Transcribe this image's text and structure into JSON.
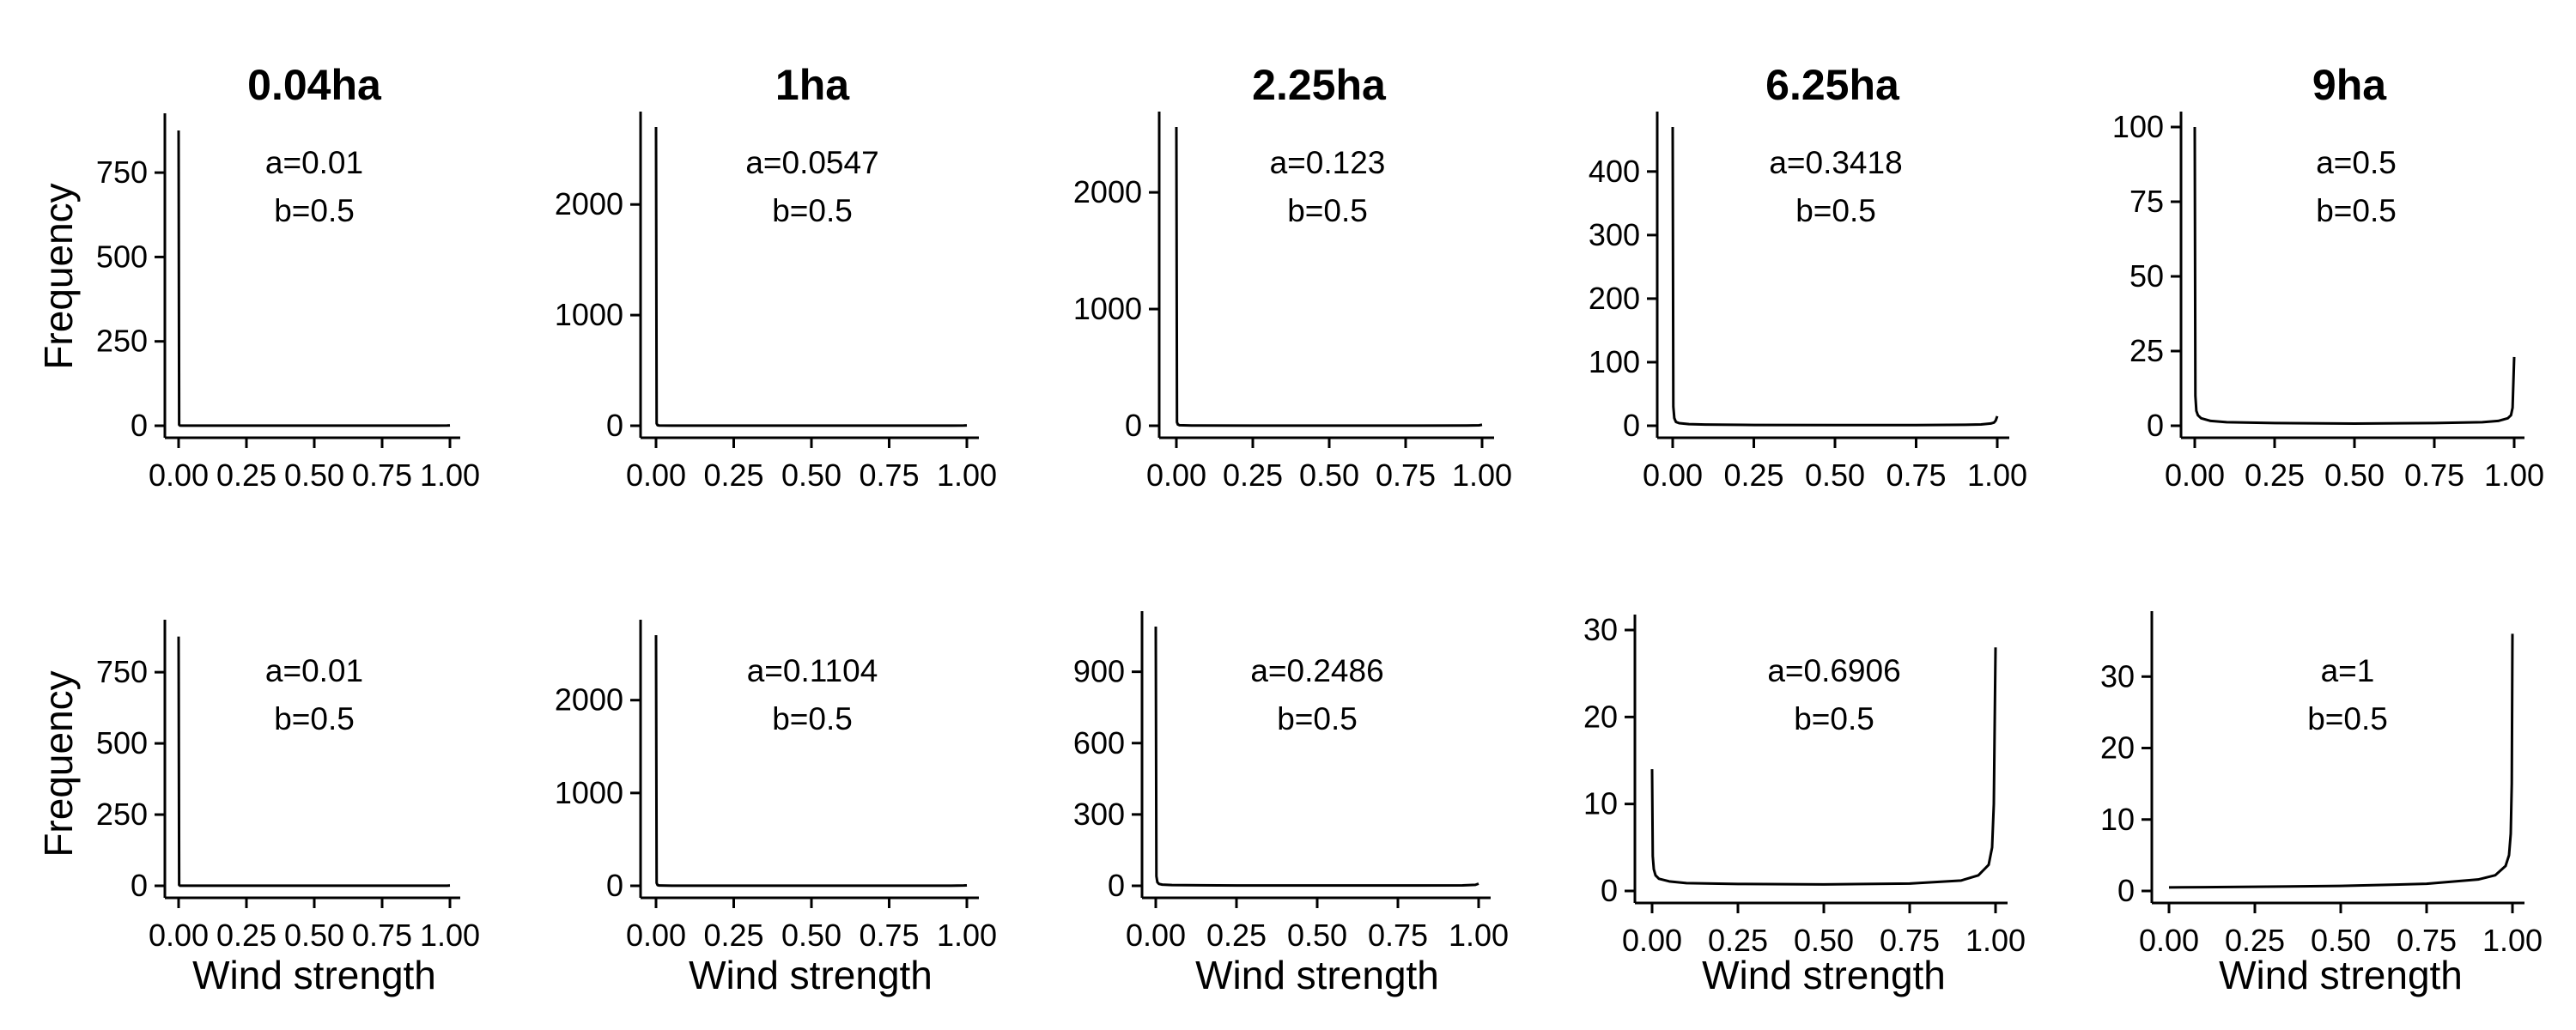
{
  "columns": [
    {
      "title": "0.04ha"
    },
    {
      "title": "1ha"
    },
    {
      "title": "2.25ha"
    },
    {
      "title": "6.25ha"
    },
    {
      "title": "9ha"
    }
  ],
  "axes": {
    "ylabel": "Frequency",
    "xlabel": "Wind strength"
  },
  "chart_data": [
    {
      "type": "line",
      "title": "0.04ha",
      "params": [
        "a=0.01",
        "b=0.5"
      ],
      "xlim": [
        0,
        1
      ],
      "ylim": [
        0,
        880
      ],
      "xticks": [
        0,
        0.25,
        0.5,
        0.75,
        1
      ],
      "xtick_labels": [
        "0.00",
        "0.25",
        "0.50",
        "0.75",
        "1.00"
      ],
      "yticks": [
        0,
        250,
        500,
        750
      ],
      "ytick_labels": [
        "0",
        "250",
        "500",
        "750"
      ],
      "x": [
        0.0,
        0.002,
        0.005,
        0.01,
        0.05,
        0.25,
        0.5,
        0.75,
        0.95,
        0.99,
        1.0
      ],
      "y": [
        875,
        3,
        0.5,
        0.3,
        0.2,
        0.2,
        0.2,
        0.2,
        0.3,
        0.5,
        1
      ]
    },
    {
      "type": "line",
      "title": "1ha",
      "params": [
        "a=0.0547",
        "b=0.5"
      ],
      "xlim": [
        0,
        1
      ],
      "ylim": [
        0,
        2700
      ],
      "xticks": [
        0,
        0.25,
        0.5,
        0.75,
        1
      ],
      "xtick_labels": [
        "0.00",
        "0.25",
        "0.50",
        "0.75",
        "1.00"
      ],
      "yticks": [
        0,
        1000,
        2000
      ],
      "ytick_labels": [
        "0",
        "1000",
        "2000"
      ],
      "x": [
        0.0,
        0.002,
        0.005,
        0.01,
        0.05,
        0.25,
        0.5,
        0.75,
        0.95,
        0.99,
        1.0
      ],
      "y": [
        2700,
        20,
        5,
        2,
        1,
        1,
        1,
        1,
        1,
        2,
        3
      ]
    },
    {
      "type": "line",
      "title": "2.25ha",
      "params": [
        "a=0.123",
        "b=0.5"
      ],
      "xlim": [
        0,
        1
      ],
      "ylim": [
        0,
        2560
      ],
      "xticks": [
        0,
        0.25,
        0.5,
        0.75,
        1
      ],
      "xtick_labels": [
        "0.00",
        "0.25",
        "0.50",
        "0.75",
        "1.00"
      ],
      "yticks": [
        0,
        1000,
        2000
      ],
      "ytick_labels": [
        "0",
        "1000",
        "2000"
      ],
      "x": [
        0.0,
        0.002,
        0.005,
        0.01,
        0.05,
        0.25,
        0.5,
        0.75,
        0.95,
        0.99,
        1.0
      ],
      "y": [
        2560,
        30,
        10,
        5,
        2,
        1,
        1,
        1,
        2,
        4,
        8
      ]
    },
    {
      "type": "line",
      "title": "6.25ha",
      "params": [
        "a=0.3418",
        "b=0.5"
      ],
      "xlim": [
        0,
        1
      ],
      "ylim": [
        0,
        470
      ],
      "xticks": [
        0,
        0.25,
        0.5,
        0.75,
        1
      ],
      "xtick_labels": [
        "0.00",
        "0.25",
        "0.50",
        "0.75",
        "1.00"
      ],
      "yticks": [
        0,
        100,
        200,
        300,
        400
      ],
      "ytick_labels": [
        "0",
        "100",
        "200",
        "300",
        "400"
      ],
      "x": [
        0.0,
        0.002,
        0.005,
        0.01,
        0.02,
        0.05,
        0.1,
        0.25,
        0.5,
        0.75,
        0.9,
        0.95,
        0.98,
        0.99,
        0.995,
        1.0
      ],
      "y": [
        470,
        30,
        12,
        6,
        4,
        2.5,
        1.8,
        1.2,
        1,
        1.1,
        1.5,
        2,
        3.5,
        5,
        8,
        15
      ]
    },
    {
      "type": "line",
      "title": "9ha",
      "params": [
        "a=0.5",
        "b=0.5"
      ],
      "xlim": [
        0,
        1
      ],
      "ylim": [
        0,
        100
      ],
      "xticks": [
        0,
        0.25,
        0.5,
        0.75,
        1
      ],
      "xtick_labels": [
        "0.00",
        "0.25",
        "0.50",
        "0.75",
        "1.00"
      ],
      "yticks": [
        0,
        25,
        50,
        75,
        100
      ],
      "ytick_labels": [
        "0",
        "25",
        "50",
        "75",
        "100"
      ],
      "x": [
        0.0,
        0.002,
        0.005,
        0.01,
        0.02,
        0.05,
        0.1,
        0.25,
        0.5,
        0.75,
        0.9,
        0.95,
        0.98,
        0.99,
        0.995,
        1.0
      ],
      "y": [
        100,
        10,
        5,
        3.5,
        2.5,
        1.6,
        1.2,
        0.9,
        0.7,
        0.9,
        1.2,
        1.6,
        2.5,
        3.5,
        6,
        23
      ]
    },
    {
      "type": "line",
      "title": "",
      "params": [
        "a=0.01",
        "b=0.5"
      ],
      "xlim": [
        0,
        1
      ],
      "ylim": [
        0,
        880
      ],
      "xticks": [
        0,
        0.25,
        0.5,
        0.75,
        1
      ],
      "xtick_labels": [
        "0.00",
        "0.25",
        "0.50",
        "0.75",
        "1.00"
      ],
      "yticks": [
        0,
        250,
        500,
        750
      ],
      "ytick_labels": [
        "0",
        "250",
        "500",
        "750"
      ],
      "x": [
        0.0,
        0.002,
        0.005,
        0.01,
        0.05,
        0.25,
        0.5,
        0.75,
        0.95,
        0.99,
        1.0
      ],
      "y": [
        875,
        3,
        0.5,
        0.3,
        0.2,
        0.2,
        0.2,
        0.2,
        0.3,
        0.5,
        1
      ]
    },
    {
      "type": "line",
      "title": "",
      "params": [
        "a=0.1104",
        "b=0.5"
      ],
      "xlim": [
        0,
        1
      ],
      "ylim": [
        0,
        2700
      ],
      "xticks": [
        0,
        0.25,
        0.5,
        0.75,
        1
      ],
      "xtick_labels": [
        "0.00",
        "0.25",
        "0.50",
        "0.75",
        "1.00"
      ],
      "yticks": [
        0,
        1000,
        2000
      ],
      "ytick_labels": [
        "0",
        "1000",
        "2000"
      ],
      "x": [
        0.0,
        0.002,
        0.005,
        0.01,
        0.05,
        0.25,
        0.5,
        0.75,
        0.95,
        0.99,
        1.0
      ],
      "y": [
        2700,
        30,
        8,
        3,
        1.5,
        1,
        1,
        1,
        1.5,
        3,
        5
      ]
    },
    {
      "type": "line",
      "title": "",
      "params": [
        "a=0.2486",
        "b=0.5"
      ],
      "xlim": [
        0,
        1
      ],
      "ylim": [
        0,
        1090
      ],
      "xticks": [
        0,
        0.25,
        0.5,
        0.75,
        1
      ],
      "xtick_labels": [
        "0.00",
        "0.25",
        "0.50",
        "0.75",
        "1.00"
      ],
      "yticks": [
        0,
        300,
        600,
        900
      ],
      "ytick_labels": [
        "0",
        "300",
        "600",
        "900"
      ],
      "x": [
        0.0,
        0.002,
        0.005,
        0.01,
        0.02,
        0.05,
        0.25,
        0.5,
        0.75,
        0.95,
        0.99,
        1.0
      ],
      "y": [
        1090,
        40,
        15,
        8,
        5,
        3,
        1.5,
        1.2,
        1.3,
        2,
        4,
        9
      ]
    },
    {
      "type": "line",
      "title": "",
      "params": [
        "a=0.6906",
        "b=0.5"
      ],
      "xlim": [
        0,
        1
      ],
      "ylim": [
        0,
        30
      ],
      "xticks": [
        0,
        0.25,
        0.5,
        0.75,
        1
      ],
      "xtick_labels": [
        "0.00",
        "0.25",
        "0.50",
        "0.75",
        "1.00"
      ],
      "yticks": [
        0,
        10,
        20,
        30
      ],
      "ytick_labels": [
        "0",
        "10",
        "20",
        "30"
      ],
      "x": [
        0.0,
        0.002,
        0.005,
        0.01,
        0.02,
        0.05,
        0.1,
        0.25,
        0.5,
        0.75,
        0.9,
        0.95,
        0.98,
        0.99,
        0.995,
        1.0
      ],
      "y": [
        14,
        4,
        2.5,
        1.8,
        1.4,
        1.1,
        0.9,
        0.8,
        0.75,
        0.85,
        1.2,
        1.8,
        3,
        5,
        10,
        28
      ]
    },
    {
      "type": "line",
      "title": "",
      "params": [
        "a=1",
        "b=0.5"
      ],
      "xlim": [
        0,
        1
      ],
      "ylim": [
        0,
        37
      ],
      "xticks": [
        0,
        0.25,
        0.5,
        0.75,
        1
      ],
      "xtick_labels": [
        "0.00",
        "0.25",
        "0.50",
        "0.75",
        "1.00"
      ],
      "yticks": [
        0,
        10,
        20,
        30
      ],
      "ytick_labels": [
        "0",
        "10",
        "20",
        "30"
      ],
      "x": [
        0.0,
        0.1,
        0.25,
        0.5,
        0.75,
        0.9,
        0.95,
        0.98,
        0.99,
        0.995,
        0.998,
        1.0
      ],
      "y": [
        0.5,
        0.52,
        0.58,
        0.7,
        1.0,
        1.6,
        2.2,
        3.5,
        5,
        8,
        15,
        36
      ]
    }
  ]
}
